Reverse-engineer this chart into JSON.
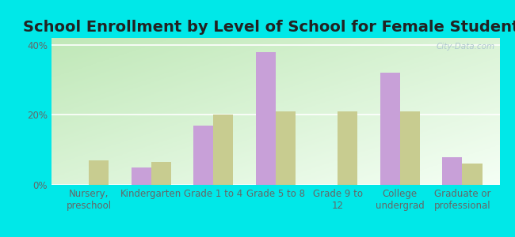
{
  "title": "School Enrollment by Level of School for Female Students",
  "categories": [
    "Nursery,\npreschool",
    "Kindergarten",
    "Grade 1 to 4",
    "Grade 5 to 8",
    "Grade 9 to\n12",
    "College\nundergrad",
    "Graduate or\nprofessional"
  ],
  "dadeville": [
    0,
    5,
    17,
    38,
    0,
    32,
    8
  ],
  "missouri": [
    7,
    6.5,
    20,
    21,
    21,
    21,
    6
  ],
  "dadeville_color": "#c8a0d8",
  "missouri_color": "#c8cc90",
  "background_color": "#00e8e8",
  "plot_bg_color_topleft": "#c8e8c0",
  "plot_bg_color_bottomright": "#f8fff8",
  "ylim": [
    0,
    42
  ],
  "yticks": [
    0,
    20,
    40
  ],
  "ytick_labels": [
    "0%",
    "20%",
    "40%"
  ],
  "title_fontsize": 14,
  "tick_fontsize": 8.5,
  "legend_fontsize": 10,
  "bar_width": 0.32,
  "watermark": "City-Data.com"
}
